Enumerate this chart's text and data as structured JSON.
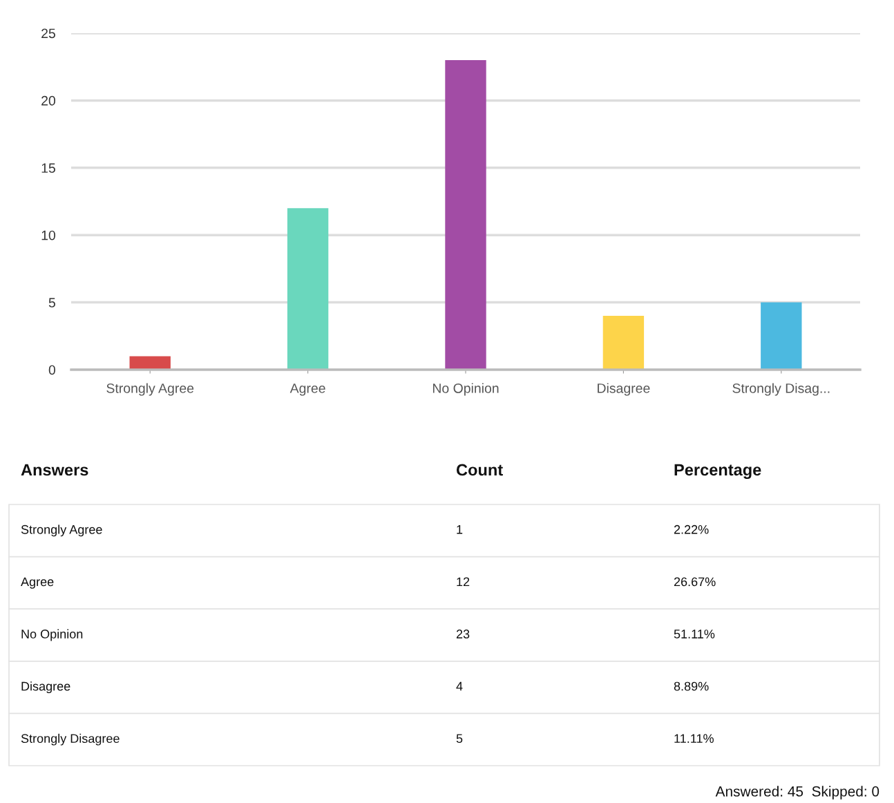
{
  "chart_data": {
    "type": "bar",
    "categories": [
      "Strongly Agree",
      "Agree",
      "No Opinion",
      "Disagree",
      "Strongly Disag..."
    ],
    "values": [
      1,
      12,
      23,
      4,
      5
    ],
    "colors": [
      "#d84b4b",
      "#6ad7bd",
      "#a24ca5",
      "#fdd44a",
      "#4cb9e0"
    ],
    "ylim": [
      0,
      25
    ],
    "yticks": [
      0,
      5,
      10,
      15,
      20,
      25
    ],
    "grid": "y",
    "annotations": [
      "Answers",
      "Count",
      "Percentage",
      "Strongly Agree",
      "Agree",
      "No Opinion",
      "Disagree",
      "Strongly Disagree",
      "1",
      "12",
      "23",
      "4",
      "5",
      "2.22%",
      "26.67%",
      "51.11%",
      "8.89%",
      "11.11%",
      "Answered: 45  Skipped: 0"
    ]
  }
}
